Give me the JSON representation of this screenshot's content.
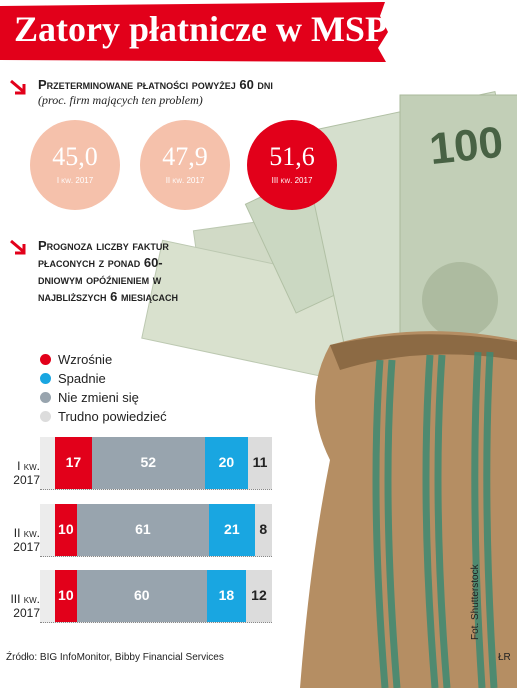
{
  "title": "Zatory płatnicze w MSP",
  "chart_data": [
    {
      "type": "circles",
      "title": "Przeterminowane płatności powyżej 60 dni",
      "subtitle": "(proc. firm mających ten problem)",
      "categories": [
        "I kw. 2017",
        "II kw. 2017",
        "III kw. 2017"
      ],
      "values": [
        45.0,
        47.9,
        51.6
      ],
      "value_labels": [
        "45,0",
        "47,9",
        "51,6"
      ],
      "colors": [
        "#f5c1ab",
        "#f5c1ab",
        "#e2001a"
      ]
    },
    {
      "type": "stacked-bar",
      "title": "Prognoza liczby faktur płaconych z ponad 60-dniowym opóźnieniem w najbliższych 6 miesiącach",
      "categories": [
        "I kw. 2017",
        "II kw. 2017",
        "III kw. 2017"
      ],
      "series": [
        {
          "name": "Wzrośnie",
          "color": "#e2001a",
          "values": [
            17,
            10,
            10
          ]
        },
        {
          "name": "Spadnie",
          "color": "#19a6e1",
          "values": [
            20,
            21,
            18
          ]
        },
        {
          "name": "Nie zmieni się",
          "color": "#98a4ae",
          "values": [
            52,
            61,
            60
          ]
        },
        {
          "name": "Trudno powiedzieć",
          "color": "#dcdcdc",
          "values": [
            11,
            8,
            12
          ]
        }
      ],
      "legend": "top-left"
    }
  ],
  "source": "Źródło: BIG InfoMonitor, Bibby Financial Services",
  "credit": "Fot. Shutterstock",
  "logo": "ŁR"
}
